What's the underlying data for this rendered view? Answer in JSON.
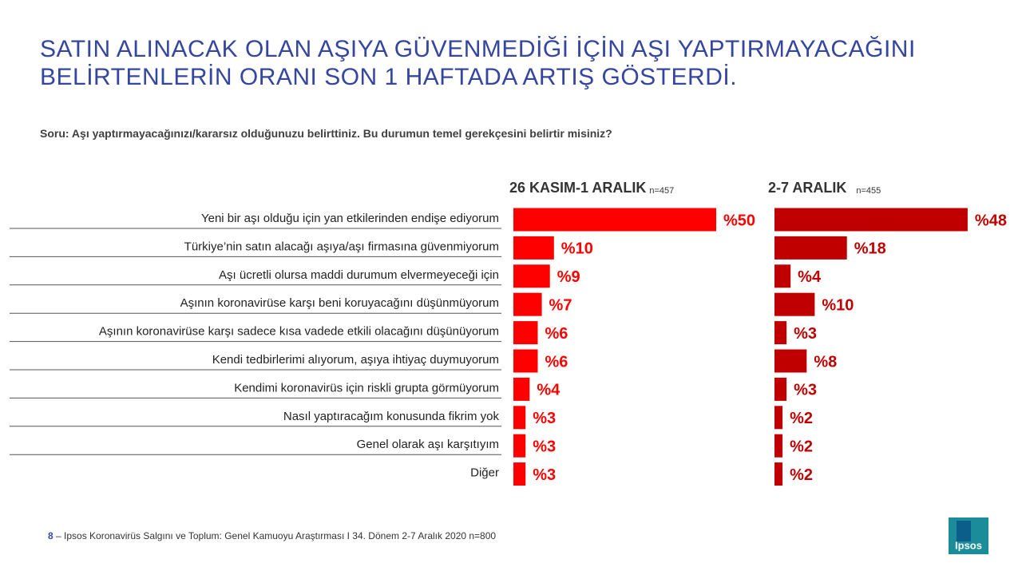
{
  "chart_data": {
    "type": "bar",
    "title": "SATIN ALINACAK OLAN AŞIYA GÜVENMEDİĞİ İÇİN AŞI YAPTIRMAYACAĞINI BELİRTENLERİN ORANI SON 1 HAFTADA ARTIŞ GÖSTERDİ.",
    "subtitle": "Soru: Aşı yaptırmayacağınızı/kararsız olduğunuzu belirttiniz. Bu durumun temel gerekçesini belirtir misiniz?",
    "categories": [
      "Yeni bir aşı olduğu için yan etkilerinden endişe ediyorum",
      "Türkiye’nin satın alacağı aşıya/aşı firmasına güvenmiyorum",
      "Aşı ücretli olursa maddi durumum elvermeyeceği için",
      "Aşının koronavirüse karşı beni koruyacağını düşünmüyorum",
      "Aşının koronavirüse karşı sadece kısa vadede etkili olacağını düşünüyorum",
      "Kendi tedbirlerimi alıyorum, aşıya ihtiyaç duymuyorum",
      "Kendimi koronavirüs için riskli grupta görmüyorum",
      "Nasıl yaptıracağım konusunda fikrim yok",
      "Genel olarak aşı karşıtıyım",
      "Diğer"
    ],
    "series": [
      {
        "name": "26 KASIM-1 ARALIK",
        "sample": "n=457",
        "color": "#ff0000",
        "values": [
          50,
          10,
          9,
          7,
          6,
          6,
          4,
          3,
          3,
          3
        ],
        "value_labels": [
          "%50",
          "%10",
          "%9",
          "%7",
          "%6",
          "%6",
          "%4",
          "%3",
          "%3",
          "%3"
        ]
      },
      {
        "name": "2-7 ARALIK",
        "sample": "n=455",
        "color": "#c00000",
        "values": [
          48,
          18,
          4,
          10,
          3,
          8,
          3,
          2,
          2,
          2
        ],
        "value_labels": [
          "%48",
          "%18",
          "%4",
          "%10",
          "%3",
          "%8",
          "%3",
          "%2",
          "%2",
          "%2"
        ]
      }
    ]
  },
  "footer": {
    "page": "8",
    "text": "– Ipsos Koronavirüs  Salgını ve Toplum: Genel Kamuoyu Araştırması I  34. Dönem 2-7 Aralık 2020   n=800",
    "logo": "Ipsos"
  }
}
